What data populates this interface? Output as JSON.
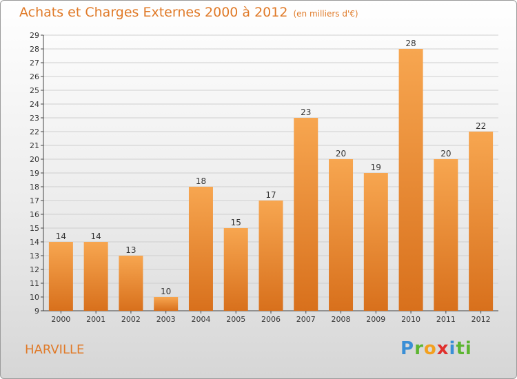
{
  "header": {
    "title": "Achats et Charges Externes 2000 à 2012",
    "subtitle": "(en milliers d'€)"
  },
  "footer": {
    "place": "HARVILLE",
    "logo_letters": [
      "P",
      "r",
      "o",
      "x",
      "i",
      "ti"
    ]
  },
  "colors": {
    "bar_light": "#f7a650",
    "bar_dark": "#d8701c",
    "title": "#e07a28",
    "axis": "#444444",
    "grid": "#cfcfcf"
  },
  "chart_data": {
    "type": "bar",
    "title": "Achats et Charges Externes 2000 à 2012",
    "subtitle": "(en milliers d'€)",
    "categories": [
      "2000",
      "2001",
      "2002",
      "2003",
      "2004",
      "2005",
      "2006",
      "2007",
      "2008",
      "2009",
      "2010",
      "2011",
      "2012"
    ],
    "values": [
      14,
      14,
      13,
      10,
      18,
      15,
      17,
      23,
      20,
      19,
      28,
      20,
      22
    ],
    "ylim": [
      9,
      29
    ],
    "yticks": [
      9,
      10,
      11,
      12,
      13,
      14,
      15,
      16,
      17,
      18,
      19,
      20,
      21,
      22,
      23,
      24,
      25,
      26,
      27,
      28,
      29
    ],
    "grid": true,
    "data_labels": true,
    "xlabel": "",
    "ylabel": ""
  }
}
